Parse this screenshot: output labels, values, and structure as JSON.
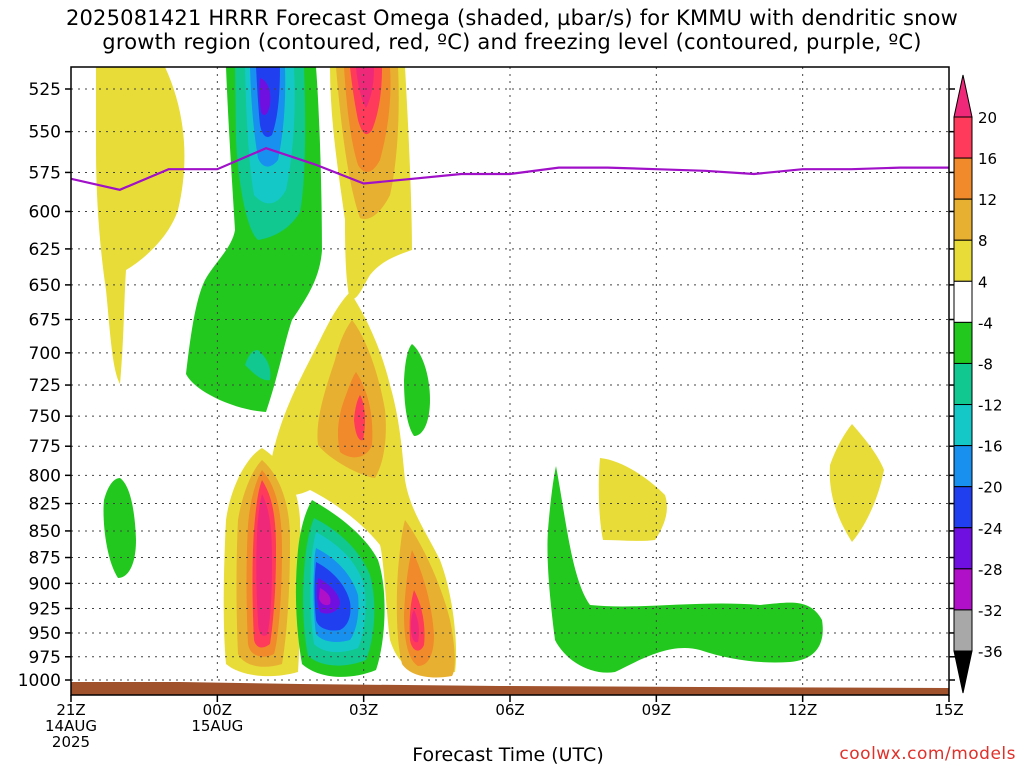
{
  "title": {
    "line1": "2025081421 HRRR Forecast Omega (shaded, µbar/s) for KMMU with dendritic snow",
    "line2": "growth region (contoured, red, ºC) and freezing level (contoured, purple, ºC)"
  },
  "xlabel": "Forecast Time (UTC)",
  "credit": "coolwx.com/models",
  "colors": {
    "freezing_level": "#a010c8",
    "ground": "#a0522d"
  },
  "chart_data": {
    "type": "heatmap",
    "title": "2025081421 HRRR Forecast Omega (shaded, µbar/s) for KMMU with dendritic snow growth region (contoured, red, ºC) and freezing level (contoured, purple, ºC)",
    "xlabel": "Forecast Time (UTC)",
    "ylabel": "",
    "x_ticks": [
      {
        "hour": 0,
        "lines": [
          "21Z",
          "14AUG",
          "2025"
        ]
      },
      {
        "hour": 3,
        "lines": [
          "00Z",
          "15AUG"
        ]
      },
      {
        "hour": 6,
        "lines": [
          "03Z"
        ]
      },
      {
        "hour": 9,
        "lines": [
          "06Z"
        ]
      },
      {
        "hour": 12,
        "lines": [
          "09Z"
        ]
      },
      {
        "hour": 15,
        "lines": [
          "12Z"
        ]
      },
      {
        "hour": 18,
        "lines": [
          "15Z"
        ]
      }
    ],
    "xlim": [
      0,
      18
    ],
    "y_ticks": [
      525,
      550,
      575,
      600,
      625,
      650,
      675,
      700,
      725,
      750,
      775,
      800,
      825,
      850,
      875,
      900,
      925,
      950,
      975,
      1000
    ],
    "ylim": [
      1015,
      510
    ],
    "y_scale": "log",
    "grid": true,
    "colorbar": {
      "labels": [
        20,
        16,
        12,
        8,
        4,
        -4,
        -8,
        -12,
        -16,
        -20,
        -24,
        -28,
        -32,
        -36
      ],
      "levels": [
        {
          "min": 16,
          "max": 20,
          "color": "#ff3a5a"
        },
        {
          "min": 12,
          "max": 16,
          "color": "#f08a2a"
        },
        {
          "min": 8,
          "max": 12,
          "color": "#e8b030"
        },
        {
          "min": 4,
          "max": 8,
          "color": "#e8dc38"
        },
        {
          "min": -4,
          "max": 4,
          "color": "#ffffff"
        },
        {
          "min": -8,
          "max": -4,
          "color": "#22c81e"
        },
        {
          "min": -12,
          "max": -8,
          "color": "#10c890"
        },
        {
          "min": -16,
          "max": -12,
          "color": "#14c8c8"
        },
        {
          "min": -20,
          "max": -16,
          "color": "#1890f0"
        },
        {
          "min": -24,
          "max": -20,
          "color": "#2040f0"
        },
        {
          "min": -28,
          "max": -24,
          "color": "#7010e0"
        },
        {
          "min": -32,
          "max": -28,
          "color": "#b010c8"
        },
        {
          "min": -36,
          "max": -32,
          "color": "#a8a8a8"
        }
      ],
      "over_color": "#f0287a",
      "under_color": "#000000"
    },
    "series": [
      {
        "x": [
          0,
          1,
          2,
          3,
          4,
          5,
          6,
          7,
          8,
          9,
          10,
          11,
          12,
          13,
          14,
          15,
          16,
          17,
          18
        ],
        "values": [
          579,
          586,
          573,
          573,
          560,
          570,
          582,
          579,
          576,
          576,
          572,
          572,
          573,
          574,
          576,
          573,
          573,
          572,
          572
        ]
      }
    ],
    "omega_features": [
      {
        "label": "rising motion core",
        "hour": 4.0,
        "p": 530,
        "value": -28
      },
      {
        "label": "sinking motion core",
        "hour": 6.0,
        "p": 525,
        "value": 20
      },
      {
        "label": "lower sinking core",
        "hour": 4.0,
        "p": 860,
        "value": 22
      },
      {
        "label": "lower rising core",
        "hour": 5.0,
        "p": 920,
        "value": -30
      },
      {
        "label": "mid sinking core",
        "hour": 5.9,
        "p": 755,
        "value": 14
      }
    ]
  }
}
